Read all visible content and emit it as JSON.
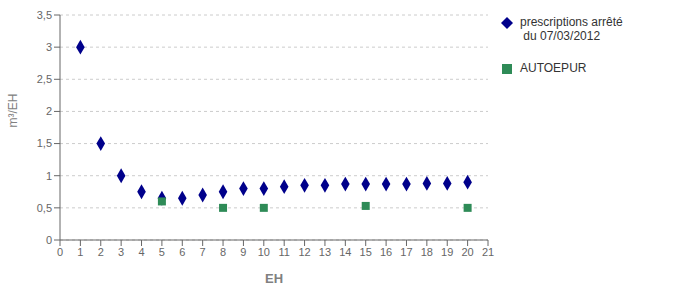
{
  "chart_data": {
    "type": "scatter",
    "xlabel": "EH",
    "ylabel": "m³/EH",
    "series": [
      {
        "name": "prescriptions arrêté\n du 07/03/2012",
        "color": "#00008B",
        "marker": "diamond",
        "x": [
          1,
          2,
          3,
          4,
          5,
          6,
          7,
          8,
          9,
          10,
          11,
          12,
          13,
          14,
          15,
          16,
          17,
          18,
          19,
          20
        ],
        "values": [
          3.0,
          1.5,
          1.0,
          0.75,
          0.65,
          0.65,
          0.7,
          0.75,
          0.8,
          0.8,
          0.83,
          0.85,
          0.85,
          0.87,
          0.87,
          0.87,
          0.87,
          0.88,
          0.88,
          0.9
        ]
      },
      {
        "name": "AUTOEPUR",
        "color": "#2E8B57",
        "marker": "square",
        "x": [
          5,
          8,
          10,
          15,
          20
        ],
        "values": [
          0.6,
          0.5,
          0.5,
          0.53,
          0.5
        ]
      }
    ],
    "xlim": [
      0,
      21
    ],
    "ylim": [
      0,
      3.5
    ],
    "xticks": [
      0,
      1,
      2,
      3,
      4,
      5,
      6,
      7,
      8,
      9,
      10,
      11,
      12,
      13,
      14,
      15,
      16,
      17,
      18,
      19,
      20,
      21
    ],
    "yticks": [
      0,
      {
        "value": 0.5,
        "label": "0,5"
      },
      1,
      {
        "value": 1.5,
        "label": "1,5"
      },
      2,
      {
        "value": 2.5,
        "label": "2,5"
      },
      3,
      {
        "value": 3.5,
        "label": "3,5"
      }
    ],
    "grid": "y",
    "legend": "right"
  }
}
